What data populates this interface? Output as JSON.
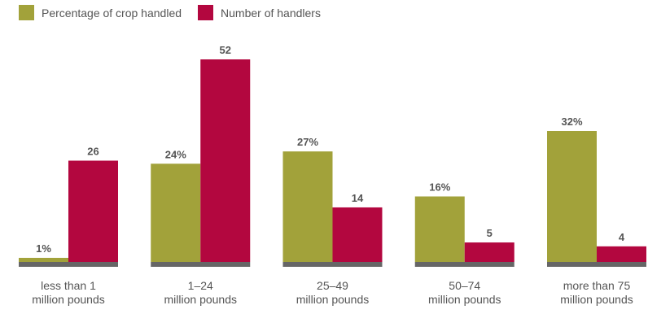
{
  "chart_data": {
    "type": "bar",
    "categories": [
      [
        "less than 1",
        "million pounds"
      ],
      [
        "1–24",
        "million pounds"
      ],
      [
        "25–49",
        "million pounds"
      ],
      [
        "50–74",
        "million pounds"
      ],
      [
        "more than 75",
        "million pounds"
      ]
    ],
    "series": [
      {
        "name": "Percentage of crop handled",
        "values": [
          1,
          24,
          27,
          16,
          32
        ],
        "labels": [
          "1%",
          "24%",
          "27%",
          "16%",
          "32%"
        ],
        "color": "#a2a23a"
      },
      {
        "name": "Number of handlers",
        "values": [
          26,
          52,
          14,
          5,
          4
        ],
        "labels": [
          "26",
          "52",
          "14",
          "5",
          "4"
        ],
        "color": "#b3073f"
      }
    ],
    "grid": false,
    "legend": "top-left",
    "baseline_color": "#666666"
  }
}
